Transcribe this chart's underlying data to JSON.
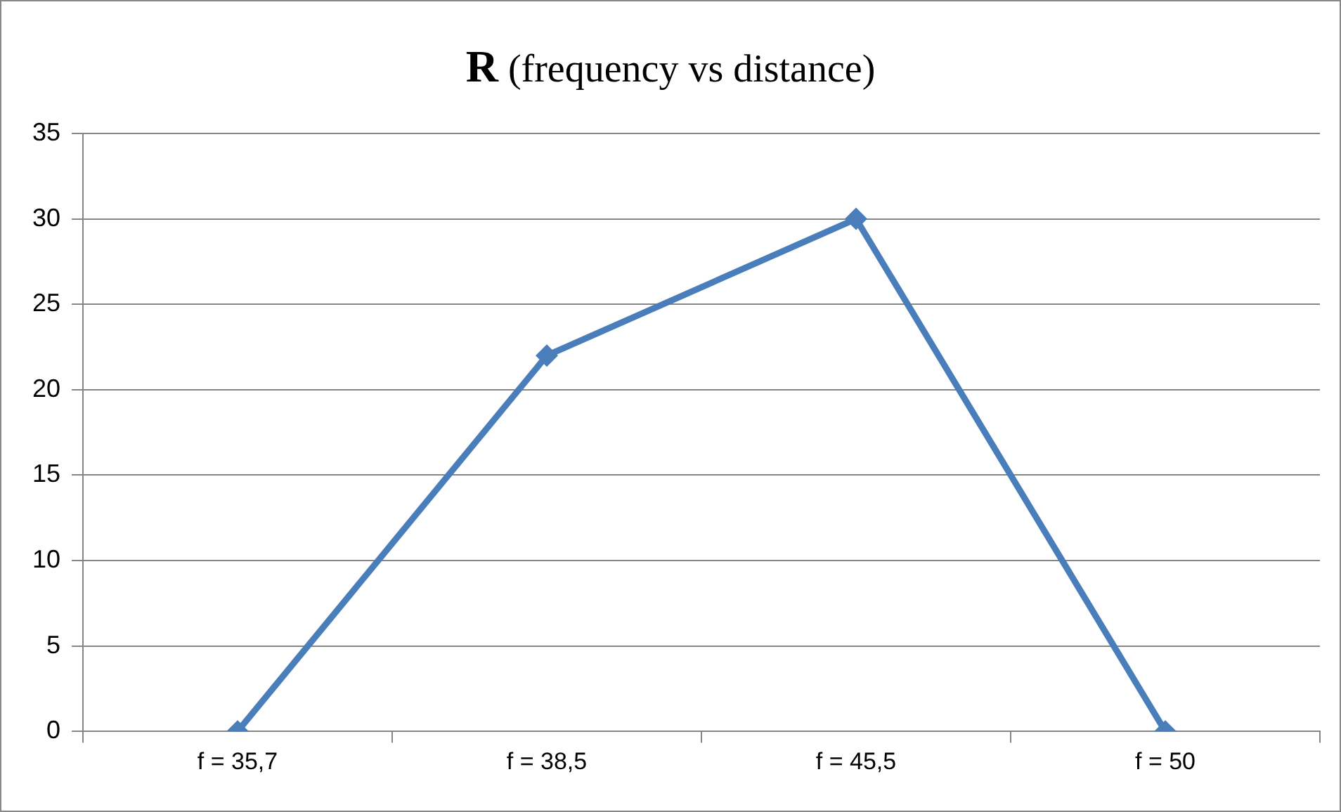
{
  "chart_data": {
    "type": "line",
    "title": "R (frequency vs distance)",
    "categories": [
      "f = 35,7",
      "f = 38,5",
      "f = 45,5",
      "f = 50"
    ],
    "series": [
      {
        "color": "#4a7ebb",
        "values": [
          0,
          22,
          30,
          0
        ]
      }
    ],
    "ylim": [
      0,
      35
    ],
    "yticks": [
      0,
      5,
      10,
      15,
      20,
      25,
      30,
      35
    ],
    "grid": "y",
    "legend": false,
    "marker": "diamond",
    "line_style": "solid"
  }
}
